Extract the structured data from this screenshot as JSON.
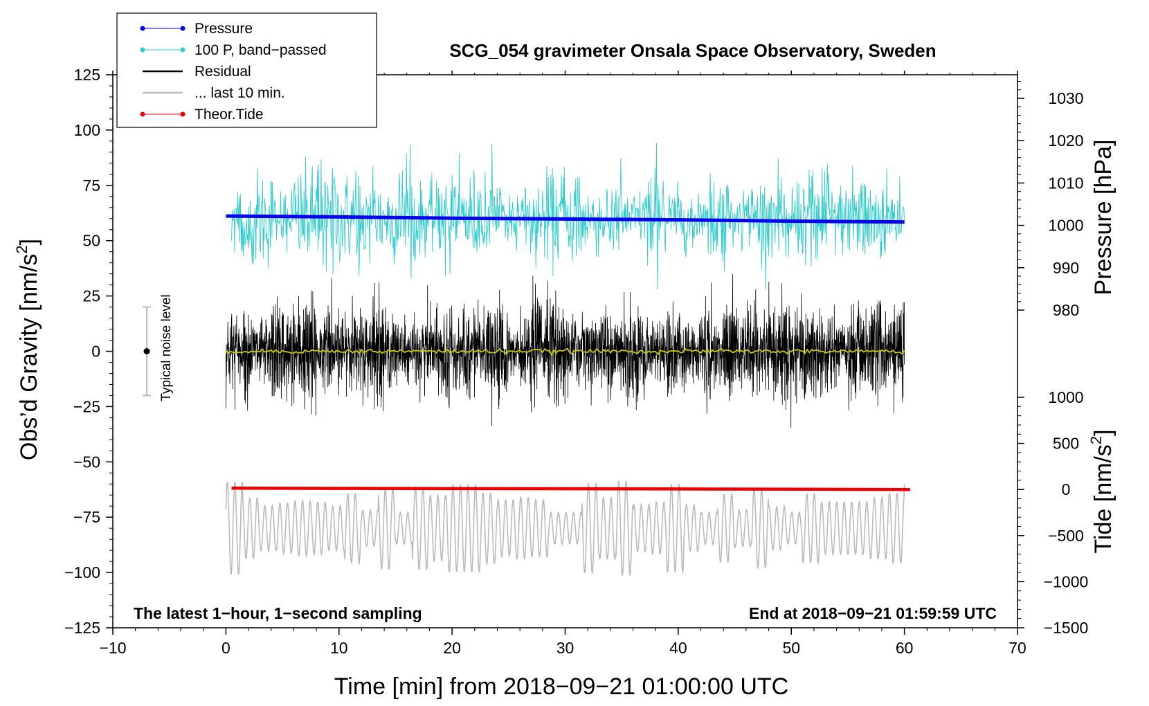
{
  "chart_data": {
    "type": "line",
    "title": "SCG_054 gravimeter Onsala Space Observatory, Sweden",
    "xlabel": "Time [min] from 2018−09−21 01:00:00 UTC",
    "ylabel_left": "Obs’d Gravity [nm/s²]",
    "ylabel_right_top": "Pressure [hPa]",
    "ylabel_right_bottom": "Tide [nm/s²]",
    "xlim": [
      -10,
      70
    ],
    "ylim_left": [
      -125,
      125
    ],
    "x_ticks": [
      -10,
      0,
      10,
      20,
      30,
      40,
      50,
      60,
      70
    ],
    "x_tick_labels": [
      "−10",
      "0",
      "10",
      "20",
      "30",
      "40",
      "50",
      "60",
      "70"
    ],
    "y_left_ticks": [
      125,
      100,
      75,
      50,
      25,
      0,
      -25,
      -50,
      -75,
      -100,
      -125
    ],
    "y_left_tick_labels": [
      "125",
      "100",
      "75",
      "50",
      "25",
      "0",
      "−25",
      "−50",
      "−75",
      "−100",
      "−125"
    ],
    "pressure_axis": {
      "ticks": [
        1030,
        1020,
        1010,
        1000,
        990,
        980
      ],
      "tick_labels": [
        "1030",
        "1020",
        "1010",
        "1000",
        "990",
        "980"
      ]
    },
    "tide_axis": {
      "ticks": [
        1000,
        500,
        0,
        -500,
        -1000,
        -1500
      ],
      "tick_labels": [
        "1000",
        "500",
        "0",
        "−500",
        "−1000",
        "−1500"
      ]
    },
    "legend_position": "top-left",
    "series": [
      {
        "name": "Pressure",
        "color": "#0000ee",
        "axis": "pressure",
        "x": [
          0,
          10,
          20,
          30,
          40,
          50,
          60
        ],
        "values": [
          1002.2,
          1002.0,
          1001.7,
          1001.5,
          1001.3,
          1001.0,
          1000.8
        ]
      },
      {
        "name": "100 P, band−passed",
        "color": "#33cccc",
        "axis": "left",
        "x_range": [
          0.5,
          60
        ],
        "center": 60,
        "amplitude": 16,
        "style": "noisy"
      },
      {
        "name": "Residual",
        "color": "#000000",
        "axis": "left",
        "x_range": [
          0,
          60
        ],
        "center": 0,
        "amplitude": 18,
        "style": "noisy"
      },
      {
        "name": "... last 10 min.",
        "color": "#bbbbbb",
        "axis": "left",
        "x_range": [
          0,
          60
        ],
        "center": -80,
        "amplitude": 16,
        "style": "oscillating"
      },
      {
        "name": "Theor.Tide",
        "color": "#ee0000",
        "axis": "tide",
        "x": [
          0.5,
          10,
          20,
          30,
          40,
          50,
          60.5
        ],
        "values": [
          15,
          12,
          10,
          8,
          6,
          4,
          0
        ]
      }
    ],
    "smoothed_residual": {
      "color": "#cccc00",
      "values_level": 0
    },
    "noise_bar": {
      "x": -7,
      "center": 0,
      "half_range": 20,
      "label": "Typical noise level"
    },
    "annotations": {
      "bottom_left": "The latest 1−hour, 1−second sampling",
      "bottom_right": "End at 2018−09−21 01:59:59 UTC"
    }
  }
}
